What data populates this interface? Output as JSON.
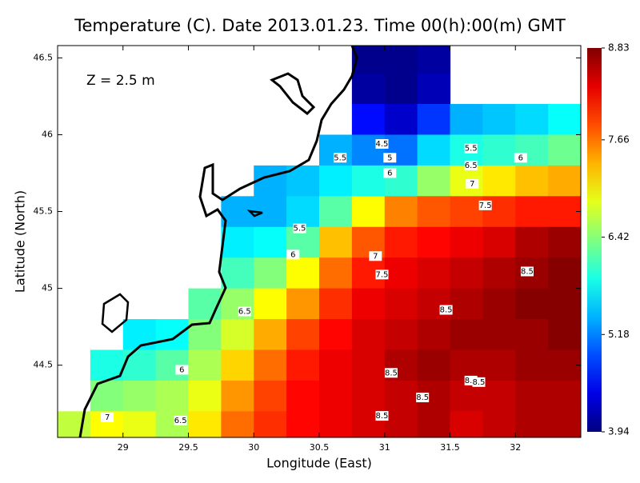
{
  "chart_data": {
    "type": "contourf",
    "title": "Temperature (C). Date 2013.01.23. Time 00(h):00(m) GMT",
    "annotation": "Z = 2.5 m",
    "x_label": "Longitude (East)",
    "y_label": "Latitude (North)",
    "xlim": [
      28.5,
      32.5
    ],
    "ylim": [
      44.03,
      46.58
    ],
    "xticks": [
      29,
      29.5,
      30,
      30.5,
      31,
      31.5,
      32
    ],
    "yticks": [
      44.5,
      45,
      45.5,
      46,
      46.5
    ],
    "colormap": "jet",
    "clim": [
      3.94,
      8.83
    ],
    "cticks": [
      3.94,
      5.18,
      6.42,
      7.66,
      8.83
    ],
    "x": [
      28.625,
      28.875,
      29.125,
      29.375,
      29.625,
      29.875,
      30.125,
      30.375,
      30.625,
      30.875,
      31.125,
      31.375,
      31.625,
      31.875,
      32.125,
      32.375
    ],
    "y": [
      46.5,
      46.3,
      46.1,
      45.9,
      45.7,
      45.5,
      45.3,
      45.1,
      44.9,
      44.7,
      44.5,
      44.3,
      44.1
    ],
    "z": [
      [
        null,
        null,
        null,
        null,
        null,
        null,
        null,
        null,
        null,
        4.0,
        4.0,
        4.1,
        null,
        null,
        null,
        null
      ],
      [
        null,
        null,
        null,
        null,
        null,
        null,
        null,
        null,
        null,
        4.1,
        4.0,
        4.2,
        null,
        null,
        null,
        null
      ],
      [
        null,
        null,
        null,
        null,
        null,
        null,
        null,
        null,
        null,
        4.6,
        4.3,
        4.8,
        5.4,
        5.5,
        5.6,
        5.8
      ],
      [
        null,
        null,
        null,
        null,
        null,
        null,
        null,
        null,
        5.4,
        5.2,
        5.1,
        5.6,
        5.9,
        6.0,
        6.1,
        6.3
      ],
      [
        null,
        null,
        null,
        null,
        null,
        null,
        5.4,
        5.5,
        5.7,
        5.9,
        6.0,
        6.5,
        6.9,
        7.1,
        7.3,
        7.4
      ],
      [
        null,
        null,
        null,
        null,
        null,
        5.4,
        5.4,
        5.6,
        6.2,
        7.0,
        7.6,
        7.8,
        7.9,
        8.0,
        8.1,
        8.1
      ],
      [
        null,
        null,
        null,
        null,
        null,
        5.7,
        5.8,
        6.2,
        7.3,
        7.8,
        8.1,
        8.2,
        8.3,
        8.4,
        8.6,
        8.7
      ],
      [
        null,
        null,
        null,
        null,
        null,
        6.1,
        6.4,
        7.0,
        7.7,
        8.1,
        8.3,
        8.4,
        8.5,
        8.6,
        8.7,
        8.8
      ],
      [
        null,
        null,
        null,
        null,
        6.2,
        6.5,
        7.0,
        7.5,
        8.0,
        8.3,
        8.4,
        8.5,
        8.6,
        8.7,
        8.8,
        8.8
      ],
      [
        null,
        null,
        5.7,
        5.8,
        6.4,
        6.8,
        7.4,
        7.9,
        8.2,
        8.4,
        8.5,
        8.6,
        8.7,
        8.7,
        8.7,
        8.8
      ],
      [
        null,
        5.9,
        6.0,
        6.2,
        6.6,
        7.2,
        7.7,
        8.1,
        8.3,
        8.4,
        8.6,
        8.7,
        8.6,
        8.6,
        8.7,
        8.7
      ],
      [
        null,
        6.4,
        6.5,
        6.6,
        6.9,
        7.5,
        7.9,
        8.2,
        8.3,
        8.4,
        8.5,
        8.6,
        8.5,
        8.5,
        8.6,
        8.6
      ],
      [
        6.7,
        7.0,
        6.9,
        6.6,
        7.1,
        7.7,
        8.0,
        8.2,
        8.3,
        8.4,
        8.5,
        8.6,
        8.4,
        8.5,
        8.6,
        8.6
      ]
    ],
    "contour_labels": [
      {
        "value": 4.5,
        "x": 30.98,
        "y": 45.94
      },
      {
        "value": 5,
        "x": 31.04,
        "y": 45.85
      },
      {
        "value": 5.5,
        "x": 31.66,
        "y": 45.91
      },
      {
        "value": 5.5,
        "x": 30.66,
        "y": 45.85
      },
      {
        "value": 6,
        "x": 31.04,
        "y": 45.75
      },
      {
        "value": 6.5,
        "x": 31.66,
        "y": 45.8
      },
      {
        "value": 6,
        "x": 32.04,
        "y": 45.85
      },
      {
        "value": 7,
        "x": 31.67,
        "y": 45.68
      },
      {
        "value": 7.5,
        "x": 31.77,
        "y": 45.54
      },
      {
        "value": 5.5,
        "x": 30.35,
        "y": 45.39
      },
      {
        "value": 6,
        "x": 30.3,
        "y": 45.22
      },
      {
        "value": 7,
        "x": 30.93,
        "y": 45.21
      },
      {
        "value": 7.5,
        "x": 30.98,
        "y": 45.09
      },
      {
        "value": 8.5,
        "x": 32.09,
        "y": 45.11
      },
      {
        "value": 6.5,
        "x": 29.93,
        "y": 44.85
      },
      {
        "value": 8.5,
        "x": 31.47,
        "y": 44.86
      },
      {
        "value": 6,
        "x": 29.45,
        "y": 44.47
      },
      {
        "value": 8.5,
        "x": 31.05,
        "y": 44.45
      },
      {
        "value": 8.5,
        "x": 31.66,
        "y": 44.4
      },
      {
        "value": 8.5,
        "x": 31.72,
        "y": 44.39
      },
      {
        "value": 8.5,
        "x": 31.29,
        "y": 44.29
      },
      {
        "value": 7,
        "x": 28.88,
        "y": 44.16
      },
      {
        "value": 6.5,
        "x": 29.44,
        "y": 44.14
      },
      {
        "value": 8.5,
        "x": 30.98,
        "y": 44.17
      }
    ]
  }
}
